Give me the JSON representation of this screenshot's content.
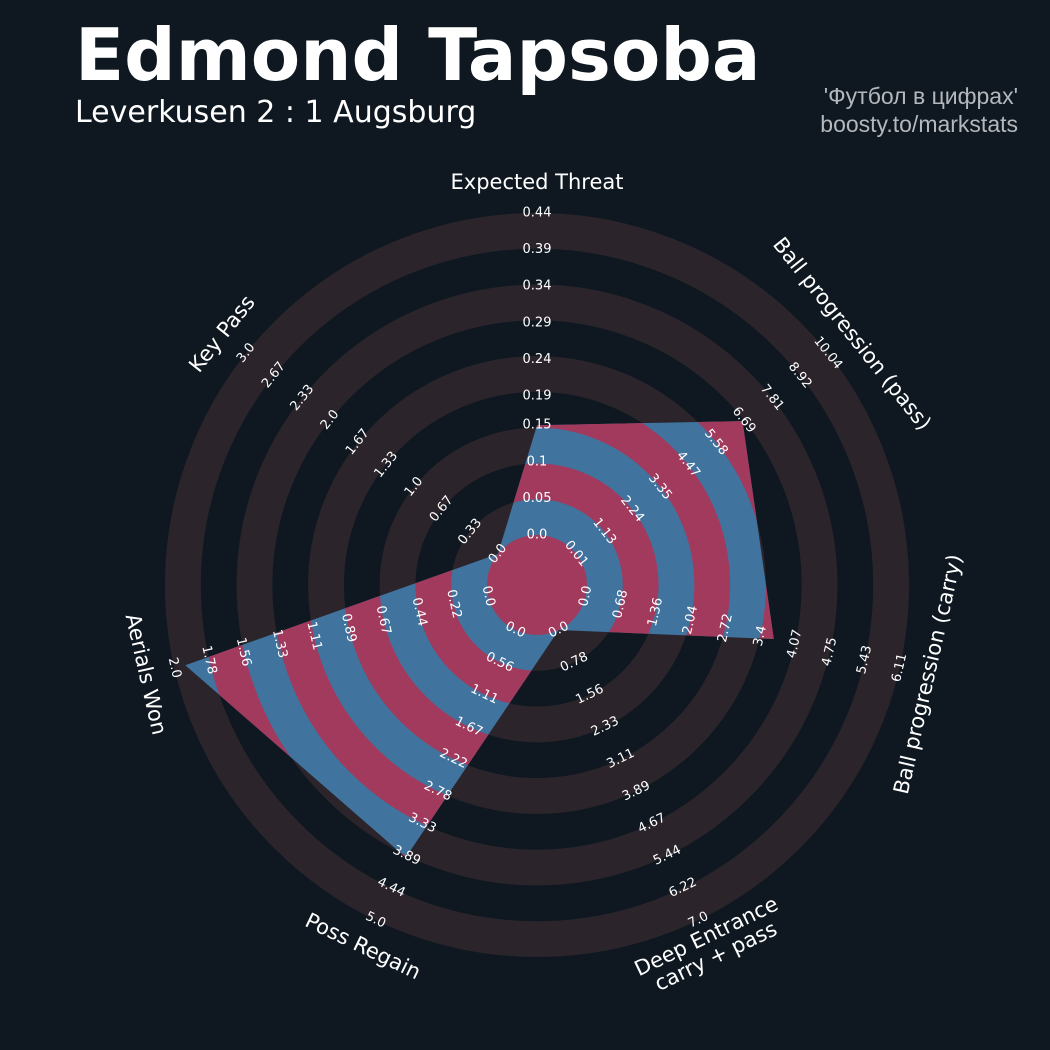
{
  "chart_data": {
    "type": "radar",
    "title": "Edmond Tapsoba",
    "subtitle": "Leverkusen 2 : 1 Augsburg",
    "credit": [
      "'Футбол в цифрах'",
      "boosty.to/markstats"
    ],
    "ring_colors": [
      "#0f1821",
      "#2b252b"
    ],
    "radar_color": "#40739e",
    "ring_fill_color": "#a23a5e",
    "params": [
      {
        "label": [
          "Expected Threat"
        ],
        "value": 0.15,
        "lim": [
          {
            "value": 0,
            "label": "0.0"
          },
          0.44
        ],
        "ticks": [
          {
            "value": 0,
            "label": "0.0"
          },
          0.05,
          0.1,
          0.15,
          0.19,
          0.24,
          0.29,
          0.34,
          0.39,
          0.44
        ]
      },
      {
        "label": [
          "Ball progression (pass)"
        ],
        "value": 6.64,
        "lim": [
          0.01,
          10.04
        ],
        "ticks": [
          0.01,
          1.13,
          2.24,
          3.35,
          4.47,
          5.58,
          6.69,
          7.81,
          8.92,
          10.04
        ]
      },
      {
        "label": [
          "Ball progression (carry)"
        ],
        "value": 3.66,
        "lim": [
          {
            "value": 0,
            "label": "0.0"
          },
          6.11
        ],
        "ticks": [
          {
            "value": 0,
            "label": "0.0"
          },
          0.68,
          1.36,
          2.04,
          2.72,
          3.4,
          4.07,
          4.75,
          5.43,
          6.11
        ]
      },
      {
        "label": [
          "Deep Entrance",
          "carry + pass"
        ],
        "value": 0,
        "lim": [
          {
            "value": 0,
            "label": "0.0"
          },
          {
            "value": 7,
            "label": "7.0"
          }
        ],
        "ticks": [
          {
            "value": 0,
            "label": "0.0"
          },
          0.78,
          1.56,
          2.33,
          3.11,
          3.89,
          4.67,
          5.44,
          6.22,
          {
            "value": 7,
            "label": "7.0"
          }
        ]
      },
      {
        "label": [
          "Poss Regain"
        ],
        "value": 3.92,
        "lim": [
          {
            "value": 0,
            "label": "0.0"
          },
          {
            "value": 5,
            "label": "5.0"
          }
        ],
        "ticks": [
          {
            "value": 0,
            "label": "0.0"
          },
          0.56,
          1.11,
          1.67,
          2.22,
          2.78,
          3.33,
          3.89,
          4.44,
          {
            "value": 5,
            "label": "5.0"
          }
        ]
      },
      {
        "label": [
          "Aerials Won"
        ],
        "value": 1.93,
        "lim": [
          {
            "value": 0,
            "label": "0.0"
          },
          {
            "value": 2,
            "label": "2.0"
          }
        ],
        "ticks": [
          {
            "value": 0,
            "label": "0.0"
          },
          0.22,
          0.44,
          0.67,
          0.89,
          1.11,
          1.33,
          1.56,
          1.78,
          {
            "value": 2,
            "label": "2.0"
          }
        ]
      },
      {
        "label": [
          "Key Pass"
        ],
        "value": 0,
        "lim": [
          {
            "value": 0,
            "label": "0.0"
          },
          {
            "value": 3,
            "label": "3.0"
          }
        ],
        "ticks": [
          {
            "value": 0,
            "label": "0.0"
          },
          0.33,
          0.67,
          {
            "value": 1,
            "label": "1.0"
          },
          1.33,
          1.67,
          {
            "value": 2,
            "label": "2.0"
          },
          2.33,
          2.67,
          {
            "value": 3,
            "label": "3.0"
          }
        ]
      }
    ]
  }
}
